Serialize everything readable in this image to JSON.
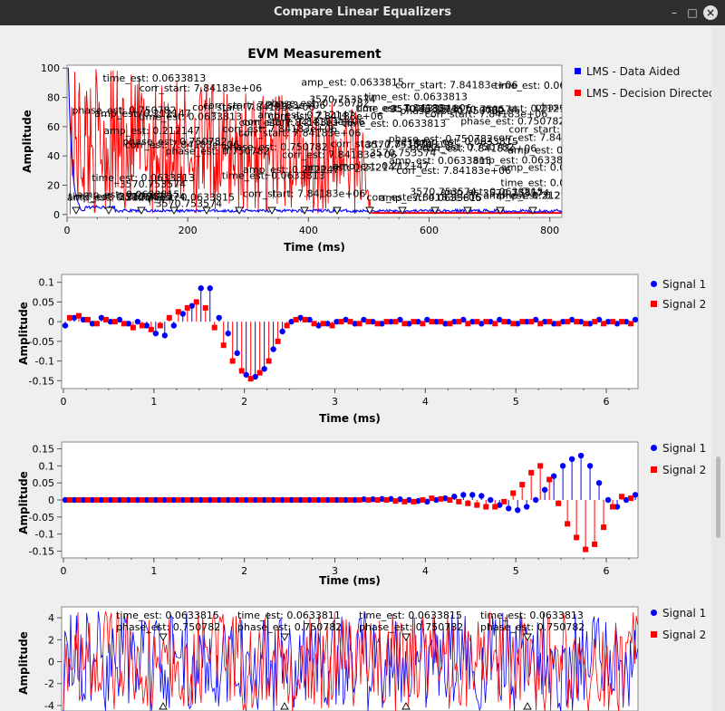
{
  "window": {
    "title": "Compare Linear Equalizers"
  },
  "evm_plot": {
    "title": "EVM Measurement",
    "xlabel": "Time (ms)",
    "ylabel": "Amplitude",
    "x_ticks": [
      "0",
      "200",
      "400",
      "600",
      "800"
    ],
    "y_ticks": [
      "100",
      "80",
      "60",
      "40",
      "20",
      "0"
    ],
    "legend": [
      {
        "label": "LMS - Data Aided",
        "color": "#0000ff"
      },
      {
        "label": "LMS - Decision Directed",
        "color": "#ff0000"
      }
    ],
    "tag_texts": [
      "amp_est: 0.212147",
      "corr_start: 7.84183e+06",
      "phase_est: 0.750782",
      "time_est: 0.0633813",
      "corr_est: 7.84183e+06",
      "amp_est: 0.0633815",
      "3570.753574"
    ]
  },
  "sig_plot_1": {
    "xlabel": "Time (ms)",
    "ylabel": "Amplitude",
    "x_ticks": [
      "0",
      "1",
      "2",
      "3",
      "4",
      "5",
      "6"
    ],
    "y_ticks": [
      "0.1",
      "0.05",
      "0",
      "-0.05",
      "-0.1",
      "-0.15"
    ],
    "legend": [
      {
        "label": "Signal 1",
        "color": "#0000ff"
      },
      {
        "label": "Signal 2",
        "color": "#ff0000"
      }
    ]
  },
  "sig_plot_2": {
    "xlabel": "Time (ms)",
    "ylabel": "Amplitude",
    "x_ticks": [
      "0",
      "1",
      "2",
      "3",
      "4",
      "5",
      "6"
    ],
    "y_ticks": [
      "0.15",
      "0.1",
      "0.05",
      "0",
      "-0.05",
      "-0.1",
      "-0.15"
    ],
    "legend": [
      {
        "label": "Signal 1",
        "color": "#0000ff"
      },
      {
        "label": "Signal 2",
        "color": "#ff0000"
      }
    ]
  },
  "sig_plot_3": {
    "ylabel": "Amplitude",
    "y_ticks": [
      "4",
      "2",
      "0",
      "-2",
      "-4"
    ],
    "legend": [
      {
        "label": "Signal 1",
        "color": "#0000ff"
      },
      {
        "label": "Signal 2",
        "color": "#ff0000"
      }
    ],
    "tags": [
      {
        "time": "time_est: 0.0633815",
        "phase": "phase_est: 0.750782"
      },
      {
        "time": "time_est: 0.0633811",
        "phase": "phase_est: 0.750782"
      },
      {
        "time": "time_est: 0.0633815",
        "phase": "phase_est: 0.750782"
      },
      {
        "time": "time_est: 0.0633813",
        "phase": "phase_est: 0.750782"
      }
    ]
  },
  "chart_data": [
    {
      "type": "line",
      "title": "EVM Measurement",
      "xlabel": "Time (ms)",
      "ylabel": "Amplitude",
      "xlim": [
        0,
        820
      ],
      "ylim": [
        -2,
        102
      ],
      "series": [
        {
          "name": "LMS - Data Aided",
          "x": [
            0,
            10,
            20,
            30,
            40,
            60,
            100,
            200,
            400,
            600,
            820
          ],
          "y": [
            100,
            60,
            20,
            8,
            4,
            2,
            1,
            1,
            1,
            1,
            1
          ]
        },
        {
          "name": "LMS - Decision Directed",
          "x": [
            0,
            10,
            20,
            100,
            200,
            300,
            400,
            480,
            500,
            600,
            820
          ],
          "y": [
            100,
            90,
            70,
            60,
            55,
            50,
            45,
            30,
            1,
            1,
            1
          ]
        }
      ]
    },
    {
      "type": "scatter",
      "xlabel": "Time (ms)",
      "ylabel": "Amplitude",
      "xlim": [
        -0.02,
        6.35
      ],
      "ylim": [
        -0.17,
        0.12
      ],
      "series": [
        {
          "name": "Signal 1",
          "x": [
            0.02,
            0.12,
            0.22,
            0.32,
            0.42,
            0.52,
            0.62,
            0.72,
            0.82,
            0.92,
            1.02,
            1.12,
            1.22,
            1.32,
            1.42,
            1.52,
            1.62,
            1.72,
            1.82,
            1.92,
            2.02,
            2.12,
            2.22,
            2.32,
            2.42,
            2.52,
            2.62,
            2.72,
            2.82,
            2.92,
            3.02,
            3.12,
            3.22,
            3.32,
            3.42,
            3.52,
            3.62,
            3.72,
            3.82,
            3.92,
            4.02,
            4.12,
            4.22,
            4.32,
            4.42,
            4.52,
            4.62,
            4.72,
            4.82,
            4.92,
            5.02,
            5.12,
            5.22,
            5.32,
            5.42,
            5.52,
            5.62,
            5.72,
            5.82,
            5.92,
            6.02,
            6.12,
            6.22,
            6.32
          ],
          "y": [
            -0.01,
            0.01,
            0.005,
            -0.005,
            0.01,
            0.0,
            0.005,
            -0.005,
            0.0,
            -0.01,
            -0.03,
            -0.035,
            -0.01,
            0.02,
            0.04,
            0.085,
            0.085,
            0.01,
            -0.03,
            -0.08,
            -0.135,
            -0.14,
            -0.12,
            -0.07,
            -0.025,
            0.0,
            0.01,
            0.005,
            -0.01,
            -0.005,
            0.0,
            0.005,
            -0.005,
            0.005,
            0.0,
            -0.005,
            0.0,
            0.005,
            -0.005,
            0.0,
            0.005,
            0.0,
            -0.005,
            0.0,
            0.005,
            0.0,
            -0.005,
            0.0,
            0.005,
            0.0,
            -0.005,
            0.0,
            0.005,
            0.0,
            -0.005,
            0.0,
            0.005,
            0.0,
            -0.005,
            0.005,
            0.0,
            -0.005,
            0.0,
            0.005
          ]
        },
        {
          "name": "Signal 2",
          "x": [
            0.07,
            0.17,
            0.27,
            0.37,
            0.47,
            0.57,
            0.67,
            0.77,
            0.87,
            0.97,
            1.07,
            1.17,
            1.27,
            1.37,
            1.47,
            1.57,
            1.67,
            1.77,
            1.87,
            1.97,
            2.07,
            2.17,
            2.27,
            2.37,
            2.47,
            2.57,
            2.67,
            2.77,
            2.87,
            2.97,
            3.07,
            3.17,
            3.27,
            3.37,
            3.47,
            3.57,
            3.67,
            3.77,
            3.87,
            3.97,
            4.07,
            4.17,
            4.27,
            4.37,
            4.47,
            4.57,
            4.67,
            4.77,
            4.87,
            4.97,
            5.07,
            5.17,
            5.27,
            5.37,
            5.47,
            5.57,
            5.67,
            5.77,
            5.87,
            5.97,
            6.07,
            6.17,
            6.27
          ],
          "y": [
            0.01,
            0.015,
            0.005,
            -0.005,
            0.005,
            0.0,
            -0.005,
            -0.015,
            -0.01,
            -0.02,
            -0.01,
            0.01,
            0.025,
            0.035,
            0.05,
            0.035,
            -0.015,
            -0.06,
            -0.1,
            -0.125,
            -0.145,
            -0.13,
            -0.1,
            -0.05,
            -0.01,
            0.005,
            0.005,
            -0.005,
            -0.005,
            -0.01,
            0.0,
            0.0,
            -0.005,
            0.0,
            -0.005,
            0.0,
            0.0,
            -0.005,
            0.0,
            -0.005,
            0.0,
            0.0,
            -0.005,
            0.0,
            -0.005,
            0.0,
            0.0,
            -0.005,
            0.0,
            -0.005,
            0.0,
            0.0,
            -0.005,
            0.0,
            -0.005,
            0.0,
            0.0,
            -0.005,
            0.0,
            -0.005,
            0.0,
            0.0,
            -0.005
          ]
        }
      ]
    },
    {
      "type": "scatter",
      "xlabel": "Time (ms)",
      "ylabel": "Amplitude",
      "xlim": [
        -0.02,
        6.35
      ],
      "ylim": [
        -0.17,
        0.17
      ],
      "series": [
        {
          "name": "Signal 1",
          "x": [
            0.02,
            0.12,
            0.22,
            0.32,
            0.42,
            0.52,
            0.62,
            0.72,
            0.82,
            0.92,
            1.02,
            1.12,
            1.22,
            1.32,
            1.42,
            1.52,
            1.62,
            1.72,
            1.82,
            1.92,
            2.02,
            2.12,
            2.22,
            2.32,
            2.42,
            2.52,
            2.62,
            2.72,
            2.82,
            2.92,
            3.02,
            3.12,
            3.22,
            3.32,
            3.42,
            3.52,
            3.62,
            3.72,
            3.82,
            3.92,
            4.02,
            4.12,
            4.22,
            4.32,
            4.42,
            4.52,
            4.62,
            4.72,
            4.82,
            4.92,
            5.02,
            5.12,
            5.22,
            5.32,
            5.42,
            5.52,
            5.62,
            5.72,
            5.82,
            5.92,
            6.02,
            6.12,
            6.22,
            6.32
          ],
          "y": [
            0,
            0,
            0,
            0,
            0,
            0,
            0,
            0,
            0,
            0,
            0,
            0,
            0,
            0,
            0,
            0,
            0,
            0,
            0,
            0,
            0,
            0,
            0,
            0,
            0,
            0,
            0,
            0,
            0,
            0,
            0,
            0,
            0,
            0.002,
            0.002,
            0.003,
            0.003,
            0.002,
            0.0,
            -0.003,
            -0.005,
            0.0,
            0.005,
            0.01,
            0.015,
            0.015,
            0.012,
            0.0,
            -0.015,
            -0.025,
            -0.03,
            -0.02,
            0.0,
            0.03,
            0.07,
            0.1,
            0.12,
            0.13,
            0.1,
            0.05,
            0.0,
            -0.02,
            0.0,
            0.015
          ]
        },
        {
          "name": "Signal 2",
          "x": [
            0.07,
            0.17,
            0.27,
            0.37,
            0.47,
            0.57,
            0.67,
            0.77,
            0.87,
            0.97,
            1.07,
            1.17,
            1.27,
            1.37,
            1.47,
            1.57,
            1.67,
            1.77,
            1.87,
            1.97,
            2.07,
            2.17,
            2.27,
            2.37,
            2.47,
            2.57,
            2.67,
            2.77,
            2.87,
            2.97,
            3.07,
            3.17,
            3.27,
            3.37,
            3.47,
            3.57,
            3.67,
            3.77,
            3.87,
            3.97,
            4.07,
            4.17,
            4.27,
            4.37,
            4.47,
            4.57,
            4.67,
            4.77,
            4.87,
            4.97,
            5.07,
            5.17,
            5.27,
            5.37,
            5.47,
            5.57,
            5.67,
            5.77,
            5.87,
            5.97,
            6.07,
            6.17,
            6.27
          ],
          "y": [
            0,
            0,
            0,
            0,
            0,
            0,
            0,
            0,
            0,
            0,
            0,
            0,
            0,
            0,
            0,
            0,
            0,
            0,
            0,
            0,
            0,
            0,
            0,
            0,
            0,
            0,
            0,
            0,
            0,
            0,
            0,
            0,
            0,
            0,
            0.0,
            0.0,
            -0.003,
            -0.005,
            -0.005,
            0.0,
            0.005,
            0.003,
            0.0,
            -0.005,
            -0.01,
            -0.015,
            -0.02,
            -0.02,
            -0.005,
            0.02,
            0.045,
            0.08,
            0.1,
            0.06,
            -0.01,
            -0.07,
            -0.11,
            -0.145,
            -0.13,
            -0.08,
            -0.02,
            0.01,
            0.005
          ]
        }
      ]
    },
    {
      "type": "line",
      "ylabel": "Amplitude",
      "ylim": [
        -4.5,
        5
      ],
      "series": [
        {
          "name": "Signal 1"
        },
        {
          "name": "Signal 2"
        }
      ]
    }
  ]
}
